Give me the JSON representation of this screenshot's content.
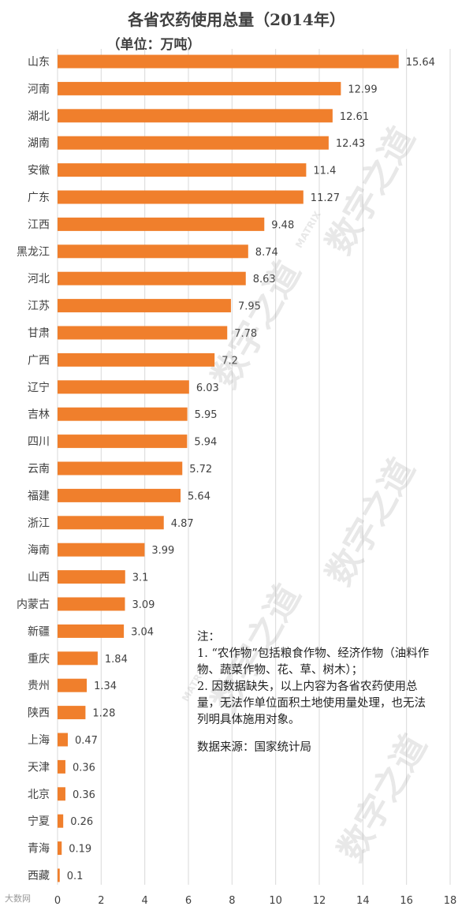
{
  "chart_data": {
    "type": "bar",
    "orientation": "horizontal",
    "title": "各省农药使用总量（2014年）",
    "subtitle": "（单位：万吨）",
    "categories": [
      "山东",
      "河南",
      "湖北",
      "湖南",
      "安徽",
      "广东",
      "江西",
      "黑龙江",
      "河北",
      "江苏",
      "甘肃",
      "广西",
      "辽宁",
      "吉林",
      "四川",
      "云南",
      "福建",
      "浙江",
      "海南",
      "山西",
      "内蒙古",
      "新疆",
      "重庆",
      "贵州",
      "陕西",
      "上海",
      "天津",
      "北京",
      "宁夏",
      "青海",
      "西藏"
    ],
    "values": [
      15.64,
      12.99,
      12.61,
      12.43,
      11.4,
      11.27,
      9.48,
      8.74,
      8.63,
      7.95,
      7.78,
      7.2,
      6.03,
      5.95,
      5.94,
      5.72,
      5.64,
      4.87,
      3.99,
      3.1,
      3.09,
      3.04,
      1.84,
      1.34,
      1.28,
      0.47,
      0.36,
      0.36,
      0.26,
      0.19,
      0.1
    ],
    "xlim": [
      0,
      18
    ],
    "xticks": [
      "0",
      "2",
      "4",
      "6",
      "8",
      "10",
      "12",
      "14",
      "16",
      "18"
    ],
    "bar_color": "#f07f2c",
    "grid": true
  },
  "notes": {
    "heading": "注：",
    "line1": "1. “农作物”包括粮食作物、经济作物（油料作物、蔬菜作物、花、草、树木）；",
    "line2": "2. 因数据缺失，以上内容为各省农药使用总量，无法作单位面积土地使用量处理，也无法列明具体施用对象。",
    "source": "数据来源：国家统计局"
  },
  "watermark": {
    "text": "数字之道",
    "sub": "MATRIX"
  },
  "corner_mark": "大数网"
}
